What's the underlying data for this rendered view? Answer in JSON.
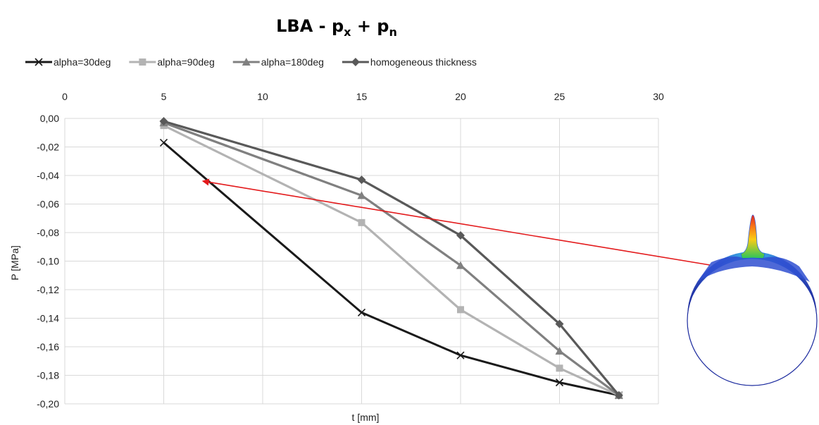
{
  "chart_data": {
    "type": "line",
    "title": {
      "main": "LBA - p",
      "sub1": "x",
      "mid": " + p",
      "sub2": "n"
    },
    "xlabel": "t [mm]",
    "ylabel": "P [MPa]",
    "xlim": [
      0,
      30
    ],
    "ylim": [
      -0.2,
      0.0
    ],
    "x_ticks": [
      0,
      5,
      10,
      15,
      20,
      25,
      30
    ],
    "x_tick_labels": [
      "0",
      "5",
      "10",
      "15",
      "20",
      "25",
      "30"
    ],
    "y_ticks": [
      0.0,
      -0.02,
      -0.04,
      -0.06,
      -0.08,
      -0.1,
      -0.12,
      -0.14,
      -0.16,
      -0.18,
      -0.2
    ],
    "y_tick_labels": [
      "0,00",
      "-0,02",
      "-0,04",
      "-0,06",
      "-0,08",
      "-0,10",
      "-0,12",
      "-0,14",
      "-0,16",
      "-0,18",
      "-0,20"
    ],
    "x_axis_position": "top",
    "grid": true,
    "legend_position": "top",
    "x": [
      5,
      15,
      20,
      25,
      28
    ],
    "series": [
      {
        "name": "alpha=30deg",
        "marker": "x",
        "color": "#1a1a1a",
        "values": [
          -0.017,
          -0.136,
          -0.166,
          -0.185,
          -0.194
        ]
      },
      {
        "name": "alpha=90deg",
        "marker": "square",
        "color": "#b3b3b3",
        "values": [
          -0.005,
          -0.073,
          -0.134,
          -0.175,
          -0.194
        ]
      },
      {
        "name": "alpha=180deg",
        "marker": "triangle",
        "color": "#808080",
        "values": [
          -0.003,
          -0.054,
          -0.103,
          -0.163,
          -0.194
        ]
      },
      {
        "name": "homogeneous thickness",
        "marker": "diamond",
        "color": "#595959",
        "values": [
          -0.002,
          -0.043,
          -0.082,
          -0.144,
          -0.194
        ]
      }
    ],
    "annotation_arrow": {
      "from_x": 28,
      "from_y": -0.1,
      "to_x": 7,
      "to_y": -0.044,
      "color": "#e31a1c"
    },
    "colors": {
      "grid": "#d9d9d9",
      "arrow": "#e31a1c"
    },
    "inset_image": "deformed-cylinder-buckling-shape"
  }
}
